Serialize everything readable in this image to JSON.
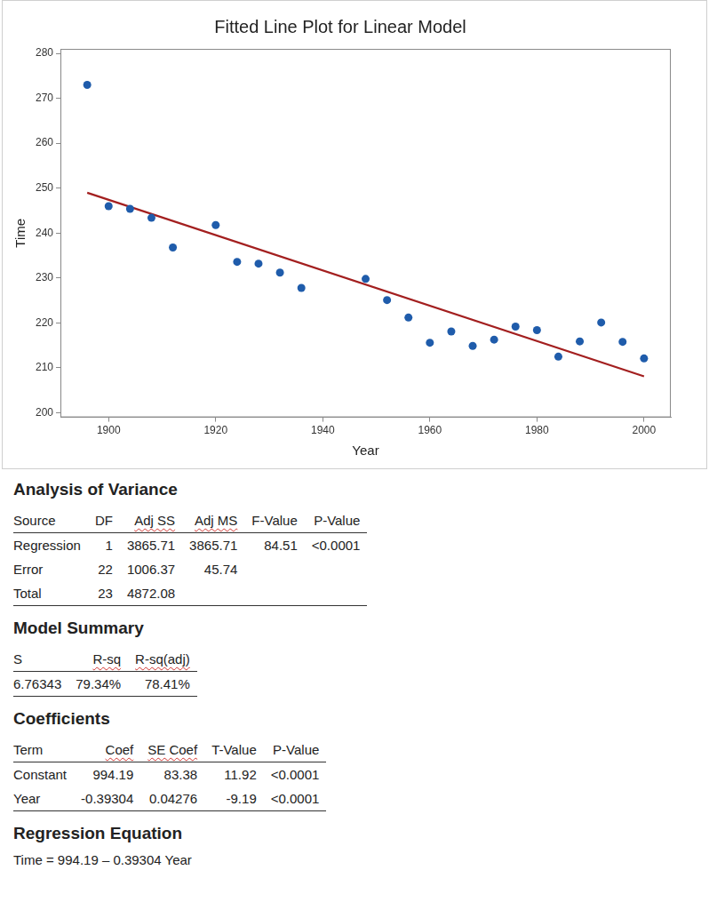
{
  "chart_data": {
    "type": "scatter",
    "title": "Fitted Line Plot for Linear Model",
    "x_label": "Year",
    "y_label": "Time",
    "series": [
      {
        "type": "scatter",
        "color": "#1f5cab",
        "marker": "circle",
        "x": [
          1896,
          1900,
          1904,
          1908,
          1912,
          1920,
          1924,
          1928,
          1932,
          1936,
          1948,
          1952,
          1956,
          1960,
          1964,
          1968,
          1972,
          1976,
          1980,
          1984,
          1988,
          1992,
          1996,
          2000
        ],
        "values": [
          273.0,
          246.0,
          245.4,
          243.4,
          236.8,
          241.8,
          233.6,
          233.2,
          231.2,
          227.8,
          229.8,
          225.1,
          221.2,
          215.6,
          218.1,
          214.9,
          216.3,
          219.2,
          218.4,
          212.5,
          215.9,
          220.1,
          215.8,
          212.1
        ]
      },
      {
        "type": "line",
        "color": "#a31f1f",
        "line_style": "solid",
        "x": [
          1896,
          2000
        ],
        "values": [
          248.99,
          208.11
        ]
      }
    ],
    "xlim": [
      1891,
      2005
    ],
    "xticks": [
      1900,
      1920,
      1940,
      1960,
      1980,
      2000
    ],
    "ylim": [
      199,
      281
    ],
    "yticks": [
      200,
      210,
      220,
      230,
      240,
      250,
      260,
      270,
      280
    ],
    "grid": false
  },
  "analysis_of_variance": {
    "title": "Analysis of Variance",
    "columns": [
      "Source",
      "DF",
      "Adj SS",
      "Adj MS",
      "F-Value",
      "P-Value"
    ],
    "rows": [
      [
        "Regression",
        "1",
        "3865.71",
        "3865.71",
        "84.51",
        "<0.0001"
      ],
      [
        "Error",
        "22",
        "1006.37",
        "45.74",
        null,
        null
      ],
      [
        "Total",
        "23",
        "4872.08",
        null,
        null,
        null
      ]
    ]
  },
  "model_summary": {
    "title": "Model Summary",
    "columns": [
      "S",
      "R-sq",
      "R-sq(adj)"
    ],
    "rows": [
      [
        "6.76343",
        "79.34%",
        "78.41%"
      ]
    ]
  },
  "coefficients": {
    "title": "Coefficients",
    "columns": [
      "Term",
      "Coef",
      "SE Coef",
      "T-Value",
      "P-Value"
    ],
    "rows": [
      [
        "Constant",
        "994.19",
        "83.38",
        "11.92",
        "<0.0001"
      ],
      [
        "Year",
        "-0.39304",
        "0.04276",
        "-9.19",
        "<0.0001"
      ]
    ]
  },
  "regression_equation": {
    "title": "Regression Equation",
    "text": "Time = 994.19 – 0.39304 Year"
  }
}
